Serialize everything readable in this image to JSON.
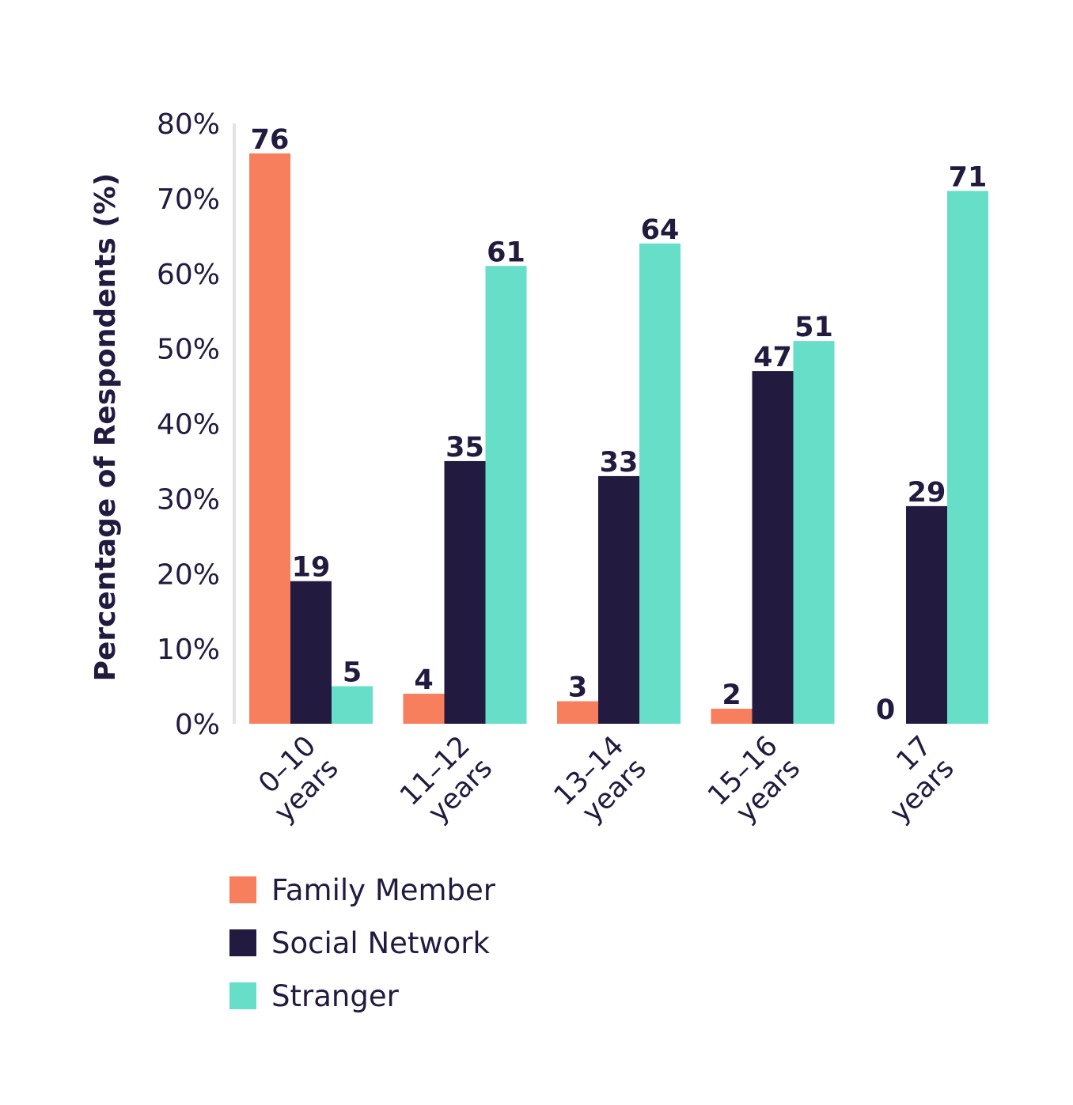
{
  "chart_data": {
    "type": "bar",
    "title": "",
    "ylabel": "Percentage of Respondents (%)",
    "xlabel": "",
    "ylim": [
      0,
      80
    ],
    "yticks": [
      0,
      10,
      20,
      30,
      40,
      50,
      60,
      70,
      80
    ],
    "ytick_suffix": "%",
    "grid": false,
    "legend_position": "bottom-left",
    "categories": [
      [
        "0–10",
        "years"
      ],
      [
        "11–12",
        "years"
      ],
      [
        "13–14",
        "years"
      ],
      [
        "15–16",
        "years"
      ],
      [
        "17",
        "years"
      ]
    ],
    "series": [
      {
        "name": "Family Member",
        "color": "#f77f5e",
        "values": [
          76,
          4,
          3,
          2,
          0
        ]
      },
      {
        "name": "Social Network",
        "color": "#221a3f",
        "values": [
          19,
          35,
          33,
          47,
          29
        ]
      },
      {
        "name": "Stranger",
        "color": "#66dec8",
        "values": [
          5,
          61,
          64,
          51,
          71
        ]
      }
    ]
  }
}
